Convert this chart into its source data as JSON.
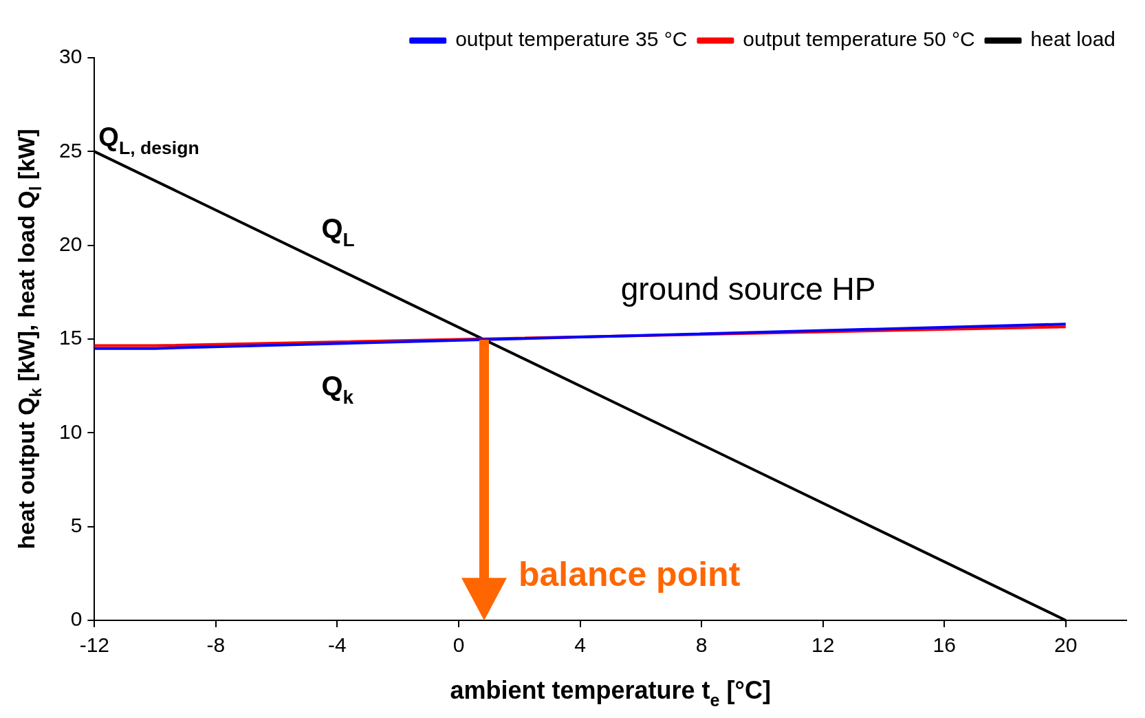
{
  "chart_data": {
    "type": "line",
    "xlabel": "ambient temperature t$_{e}$ [°C]",
    "ylabel": "heat output Q$_{k}$ [kW], heat load Q$_{l}$ [kW]",
    "xlim": [
      -12,
      22
    ],
    "xticks": [
      -12,
      -8,
      -4,
      0,
      4,
      8,
      12,
      16,
      20
    ],
    "ylim": [
      0,
      30
    ],
    "yticks": [
      0,
      5,
      10,
      15,
      20,
      25,
      30
    ],
    "grid": false,
    "legend": "top right",
    "marker": "none",
    "line_style": "solid",
    "series": [
      {
        "name": "output temperature 35 °C",
        "color": "#0000ff",
        "x": [
          -12,
          -10,
          20
        ],
        "values": [
          14.5,
          14.5,
          15.8
        ]
      },
      {
        "name": "output temperature 50 °C",
        "color": "#ff0000",
        "x": [
          -12,
          -10,
          20
        ],
        "values": [
          14.65,
          14.65,
          15.65
        ]
      },
      {
        "name": "heat load",
        "color": "#000000",
        "x": [
          -12,
          20
        ],
        "values": [
          25,
          0
        ]
      }
    ],
    "annotations": [
      {
        "text": "Q$_{L, design}$",
        "x": -12,
        "y": 25
      },
      "Q$_{L}$",
      "Q$_{k}$",
      "ground source HP",
      "balance point"
    ]
  }
}
